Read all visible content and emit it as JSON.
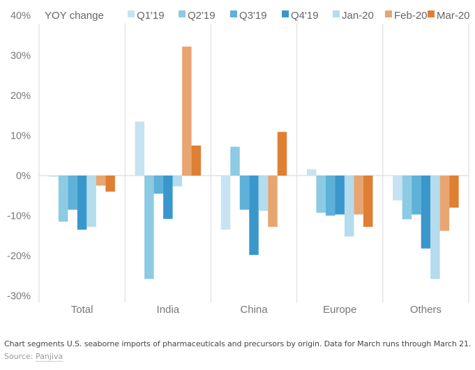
{
  "chart_data": {
    "type": "bar",
    "title": "",
    "ylabel": "YOY change",
    "xlabel": "",
    "ylim": [
      -30,
      40
    ],
    "yticks": [
      40,
      30,
      20,
      10,
      0,
      -10,
      -20,
      -30
    ],
    "ytick_labels": [
      "40%",
      "30%",
      "20%",
      "10%",
      "0%",
      "-10%",
      "-20%",
      "-30%"
    ],
    "grid": "vertical category separators and zero line",
    "legend_position": "top",
    "categories": [
      "Total",
      "India",
      "China",
      "Europe",
      "Others"
    ],
    "series": [
      {
        "name": "Q1'19",
        "color": "#c7e3f1",
        "values": [
          -0.3,
          13.5,
          -13.5,
          1.6,
          -6.2
        ]
      },
      {
        "name": "Q2'19",
        "color": "#8ccbe3",
        "values": [
          -11.5,
          -25.8,
          7.2,
          -9.3,
          -10.9
        ]
      },
      {
        "name": "Q3'19",
        "color": "#5eb1d8",
        "values": [
          -8.5,
          -4.5,
          -8.5,
          -10.0,
          -9.7
        ]
      },
      {
        "name": "Q4'19",
        "color": "#3a97cc",
        "values": [
          -13.5,
          -10.8,
          -19.8,
          -9.7,
          -18.2
        ]
      },
      {
        "name": "Jan-20",
        "color": "#b4dced",
        "values": [
          -12.8,
          -2.7,
          -8.8,
          -15.2,
          -25.8
        ]
      },
      {
        "name": "Feb-20",
        "color": "#e8a572",
        "values": [
          -2.5,
          32.2,
          -12.8,
          -9.7,
          -13.8
        ]
      },
      {
        "name": "Mar-20",
        "color": "#df7f34",
        "values": [
          -4.0,
          7.5,
          10.9,
          -12.8,
          -8.0
        ]
      }
    ]
  },
  "caption": "Chart segments U.S. seaborne imports of pharmaceuticals and precursors by origin. Data for March runs through March 21.",
  "source": {
    "label": "Source: ",
    "link_text": "Panjiva"
  }
}
